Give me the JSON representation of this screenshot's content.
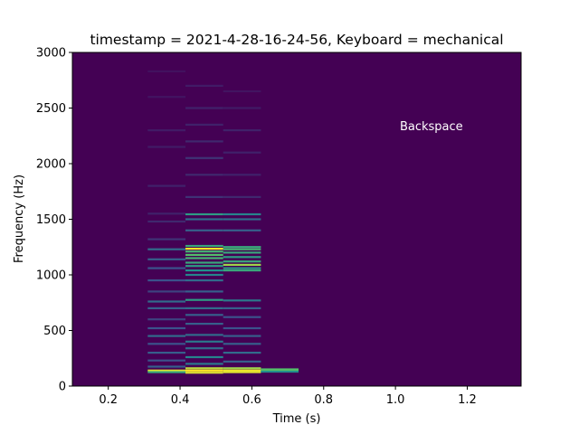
{
  "chart_data": {
    "type": "heatmap",
    "title": "timestamp = 2021-4-28-16-24-56, Keyboard = mechanical",
    "xlabel": "Time (s)",
    "ylabel": "Frequency (Hz)",
    "xlim": [
      0.1,
      1.35
    ],
    "ylim": [
      0,
      3000
    ],
    "x_ticks": [
      0.2,
      0.4,
      0.6,
      0.8,
      1.0,
      1.2
    ],
    "x_tick_labels": [
      "0.2",
      "0.4",
      "0.6",
      "0.8",
      "1.0",
      "1.2"
    ],
    "y_ticks": [
      0,
      500,
      1000,
      1500,
      2000,
      2500,
      3000
    ],
    "y_tick_labels": [
      "0",
      "500",
      "1000",
      "1500",
      "2000",
      "2500",
      "3000"
    ],
    "annotation": {
      "text": "Backspace",
      "x": 1.1,
      "y": 2300,
      "color": "#ffffff"
    },
    "colormap": "viridis",
    "background_color": "#440154",
    "grid": false,
    "time_bins": [
      {
        "t_start": 0.31,
        "t_end": 0.415,
        "bands": [
          {
            "f": 140,
            "i": 0.95
          },
          {
            "f": 125,
            "i": 0.6
          },
          {
            "f": 175,
            "i": 0.3
          },
          {
            "f": 230,
            "i": 0.25
          },
          {
            "f": 300,
            "i": 0.3
          },
          {
            "f": 380,
            "i": 0.25
          },
          {
            "f": 450,
            "i": 0.35
          },
          {
            "f": 520,
            "i": 0.25
          },
          {
            "f": 600,
            "i": 0.2
          },
          {
            "f": 700,
            "i": 0.3
          },
          {
            "f": 760,
            "i": 0.35
          },
          {
            "f": 850,
            "i": 0.2
          },
          {
            "f": 950,
            "i": 0.25
          },
          {
            "f": 1060,
            "i": 0.25
          },
          {
            "f": 1140,
            "i": 0.3
          },
          {
            "f": 1230,
            "i": 0.35
          },
          {
            "f": 1320,
            "i": 0.15
          },
          {
            "f": 1480,
            "i": 0.12
          },
          {
            "f": 1550,
            "i": 0.1
          },
          {
            "f": 1800,
            "i": 0.1
          },
          {
            "f": 2150,
            "i": 0.08
          },
          {
            "f": 2300,
            "i": 0.08
          },
          {
            "f": 2600,
            "i": 0.06
          },
          {
            "f": 2830,
            "i": 0.05
          }
        ]
      },
      {
        "t_start": 0.415,
        "t_end": 0.52,
        "bands": [
          {
            "f": 140,
            "i": 1.0
          },
          {
            "f": 120,
            "i": 0.95
          },
          {
            "f": 160,
            "i": 0.9
          },
          {
            "f": 200,
            "i": 0.4
          },
          {
            "f": 260,
            "i": 0.45
          },
          {
            "f": 340,
            "i": 0.35
          },
          {
            "f": 400,
            "i": 0.4
          },
          {
            "f": 460,
            "i": 0.35
          },
          {
            "f": 560,
            "i": 0.3
          },
          {
            "f": 640,
            "i": 0.3
          },
          {
            "f": 700,
            "i": 0.35
          },
          {
            "f": 775,
            "i": 0.55
          },
          {
            "f": 850,
            "i": 0.3
          },
          {
            "f": 950,
            "i": 0.35
          },
          {
            "f": 1000,
            "i": 0.45
          },
          {
            "f": 1040,
            "i": 0.5
          },
          {
            "f": 1080,
            "i": 0.55
          },
          {
            "f": 1110,
            "i": 0.6
          },
          {
            "f": 1150,
            "i": 0.65
          },
          {
            "f": 1180,
            "i": 0.7
          },
          {
            "f": 1210,
            "i": 0.65
          },
          {
            "f": 1235,
            "i": 1.0
          },
          {
            "f": 1260,
            "i": 0.6
          },
          {
            "f": 1400,
            "i": 0.3
          },
          {
            "f": 1500,
            "i": 0.35
          },
          {
            "f": 1545,
            "i": 0.55
          },
          {
            "f": 1700,
            "i": 0.15
          },
          {
            "f": 1900,
            "i": 0.12
          },
          {
            "f": 2050,
            "i": 0.15
          },
          {
            "f": 2200,
            "i": 0.12
          },
          {
            "f": 2350,
            "i": 0.1
          },
          {
            "f": 2500,
            "i": 0.1
          },
          {
            "f": 2700,
            "i": 0.08
          }
        ]
      },
      {
        "t_start": 0.52,
        "t_end": 0.625,
        "bands": [
          {
            "f": 140,
            "i": 0.98
          },
          {
            "f": 125,
            "i": 0.95
          },
          {
            "f": 160,
            "i": 0.85
          },
          {
            "f": 220,
            "i": 0.3
          },
          {
            "f": 300,
            "i": 0.35
          },
          {
            "f": 380,
            "i": 0.3
          },
          {
            "f": 450,
            "i": 0.3
          },
          {
            "f": 520,
            "i": 0.25
          },
          {
            "f": 620,
            "i": 0.25
          },
          {
            "f": 700,
            "i": 0.3
          },
          {
            "f": 770,
            "i": 0.4
          },
          {
            "f": 1040,
            "i": 0.6
          },
          {
            "f": 1060,
            "i": 0.55
          },
          {
            "f": 1090,
            "i": 0.85
          },
          {
            "f": 1120,
            "i": 0.6
          },
          {
            "f": 1160,
            "i": 0.55
          },
          {
            "f": 1200,
            "i": 0.6
          },
          {
            "f": 1230,
            "i": 0.65
          },
          {
            "f": 1250,
            "i": 0.6
          },
          {
            "f": 1400,
            "i": 0.3
          },
          {
            "f": 1500,
            "i": 0.35
          },
          {
            "f": 1545,
            "i": 0.45
          },
          {
            "f": 1700,
            "i": 0.12
          },
          {
            "f": 1900,
            "i": 0.1
          },
          {
            "f": 2100,
            "i": 0.1
          },
          {
            "f": 2300,
            "i": 0.1
          },
          {
            "f": 2500,
            "i": 0.08
          },
          {
            "f": 2650,
            "i": 0.06
          }
        ]
      },
      {
        "t_start": 0.625,
        "t_end": 0.73,
        "bands": [
          {
            "f": 140,
            "i": 0.8
          },
          {
            "f": 150,
            "i": 0.7
          },
          {
            "f": 130,
            "i": 0.5
          }
        ]
      }
    ]
  }
}
